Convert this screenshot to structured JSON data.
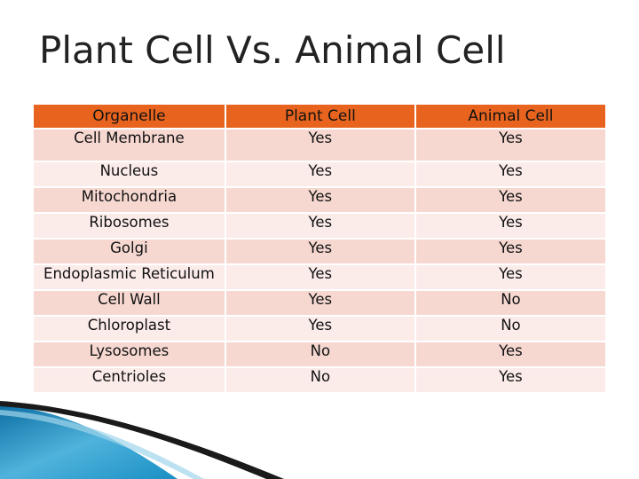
{
  "slide": {
    "title": "Plant Cell Vs. Animal Cell"
  },
  "table": {
    "headers": [
      "Organelle",
      "Plant Cell",
      "Animal Cell"
    ],
    "rows": [
      [
        "Cell Membrane",
        "Yes",
        "Yes"
      ],
      [
        "Nucleus",
        "Yes",
        "Yes"
      ],
      [
        "Mitochondria",
        "Yes",
        "Yes"
      ],
      [
        "Ribosomes",
        "Yes",
        "Yes"
      ],
      [
        "Golgi",
        "Yes",
        "Yes"
      ],
      [
        "Endoplasmic Reticulum",
        "Yes",
        "Yes"
      ],
      [
        "Cell Wall",
        "Yes",
        "No"
      ],
      [
        "Chloroplast",
        "Yes",
        "No"
      ],
      [
        "Lysosomes",
        "No",
        "Yes"
      ],
      [
        "Centrioles",
        "No",
        "Yes"
      ]
    ]
  },
  "colors": {
    "header_bg": "#e8641e",
    "row_dark": "#f6d8d1",
    "row_light": "#fbecea",
    "accent_blue": "#1a8fc4"
  }
}
